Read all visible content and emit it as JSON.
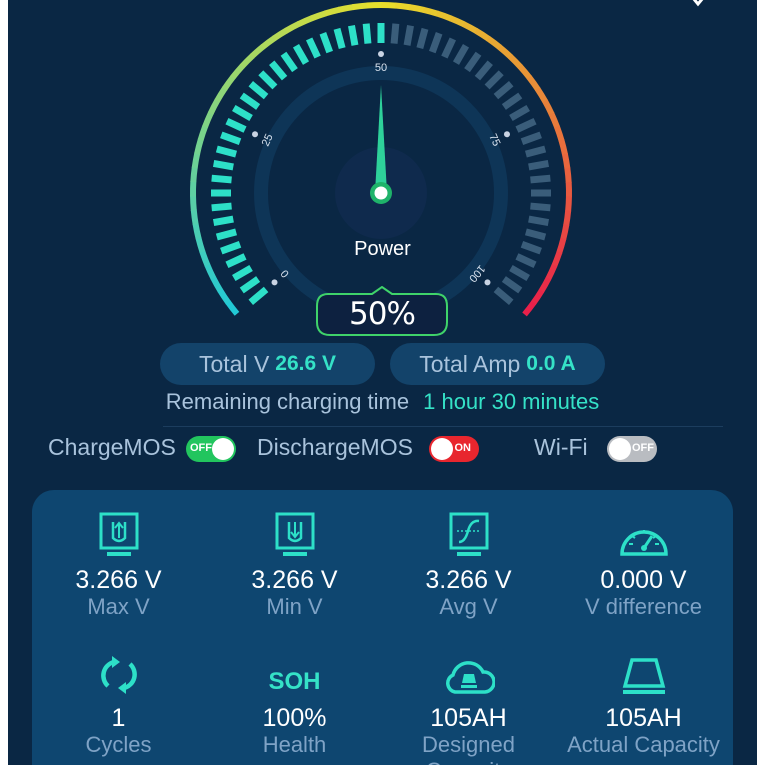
{
  "gauge": {
    "label": "Power",
    "value": 50,
    "value_text": "50%",
    "scale_labels": [
      "0",
      "25",
      "50",
      "75",
      "100"
    ],
    "colors": {
      "active_tick": "#2de0c8",
      "inactive_tick": "#3a5d7a",
      "arc_start": "#22c9d6",
      "arc_mid": "#e8df2a",
      "arc_end": "#e8204a",
      "needle": "#2ed19a"
    }
  },
  "stats": {
    "total_v_label": "Total V",
    "total_v_value": "26.6 V",
    "total_amp_label": "Total Amp",
    "total_amp_value": "0.0 A",
    "remaining_label": "Remaining charging time",
    "remaining_value": "1 hour 30 minutes"
  },
  "toggles": [
    {
      "label": "ChargeMOS",
      "state": "OFF",
      "color": "#22c55e"
    },
    {
      "label": "DischargeMOS",
      "state": "ON",
      "color": "#e8262e"
    },
    {
      "label": "Wi-Fi",
      "state": "OFF",
      "color": "#b9bcc1"
    }
  ],
  "metrics": [
    {
      "icon": "max-voltage-icon",
      "value": "3.266 V",
      "label": "Max V"
    },
    {
      "icon": "min-voltage-icon",
      "value": "3.266 V",
      "label": "Min V"
    },
    {
      "icon": "avg-voltage-icon",
      "value": "3.266 V",
      "label": "Avg V"
    },
    {
      "icon": "speedometer-icon",
      "value": "0.000 V",
      "label": "V difference"
    },
    {
      "icon": "cycle-icon",
      "value": "1",
      "label": "Cycles"
    },
    {
      "icon": "soh-icon",
      "icon_text": "SOH",
      "value": "100%",
      "label": "Health"
    },
    {
      "icon": "cloud-capacity-icon",
      "value": "105AH",
      "label": "Designed Capacity"
    },
    {
      "icon": "trapezoid-capacity-icon",
      "value": "105AH",
      "label": "Actual Capacity"
    }
  ]
}
